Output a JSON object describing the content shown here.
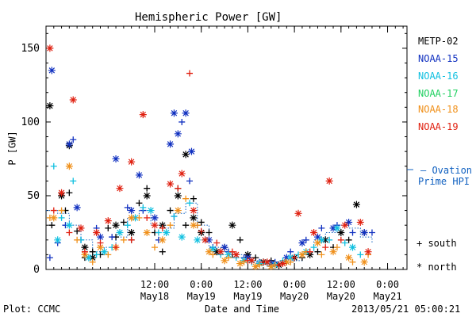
{
  "chart_data": {
    "type": "scatter",
    "title": "Hemispheric Power [GW]",
    "ylabel": "P [GW]",
    "xlabel": "Date and Time",
    "ylim": [
      0,
      165
    ],
    "xlim": [
      "2013-05-17 08:00",
      "2013-05-21 05:00"
    ],
    "yticks": [
      "0",
      "50",
      "100",
      "150"
    ],
    "xticks": [
      {
        "time": "12:00",
        "date": "May18"
      },
      {
        "time": "0:00",
        "date": "May19"
      },
      {
        "time": "12:00",
        "date": "May19"
      },
      {
        "time": "0:00",
        "date": "May20"
      },
      {
        "time": "12:00",
        "date": "May20"
      },
      {
        "time": "0:00",
        "date": "May21"
      }
    ],
    "legend_placement": "right",
    "series": [
      {
        "name": "METP-02",
        "color": "#000000",
        "south": [
          [
            1.5,
            30
          ],
          [
            5,
            40
          ],
          [
            6,
            52
          ],
          [
            8,
            26
          ],
          [
            10,
            8
          ],
          [
            12,
            12
          ],
          [
            14,
            10
          ],
          [
            16,
            28
          ],
          [
            18,
            22
          ],
          [
            20,
            32
          ],
          [
            22,
            20
          ],
          [
            24,
            45
          ],
          [
            26,
            55
          ],
          [
            28,
            25
          ],
          [
            30,
            12
          ],
          [
            32,
            40
          ],
          [
            34,
            55
          ],
          [
            36,
            30
          ],
          [
            38,
            48
          ],
          [
            40,
            32
          ],
          [
            42,
            25
          ],
          [
            46,
            15
          ],
          [
            48,
            10
          ],
          [
            50,
            20
          ],
          [
            54,
            8
          ],
          [
            58,
            6
          ],
          [
            62,
            5
          ],
          [
            66,
            8
          ],
          [
            70,
            12
          ],
          [
            74,
            15
          ],
          [
            78,
            20
          ],
          [
            82,
            25
          ]
        ],
        "north": [
          [
            1,
            111
          ],
          [
            4,
            50
          ],
          [
            6,
            84
          ],
          [
            10,
            15
          ],
          [
            12,
            8
          ],
          [
            18,
            30
          ],
          [
            22,
            25
          ],
          [
            26,
            50
          ],
          [
            30,
            30
          ],
          [
            34,
            50
          ],
          [
            36,
            78
          ],
          [
            38,
            35
          ],
          [
            40,
            25
          ],
          [
            44,
            12
          ],
          [
            48,
            30
          ],
          [
            52,
            10
          ],
          [
            56,
            5
          ],
          [
            60,
            3
          ],
          [
            64,
            8
          ],
          [
            68,
            10
          ],
          [
            72,
            20
          ],
          [
            76,
            25
          ],
          [
            80,
            44
          ]
        ]
      },
      {
        "name": "NOAA-15",
        "color": "#1030c0",
        "south": [
          [
            1,
            8
          ],
          [
            3,
            18
          ],
          [
            5,
            30
          ],
          [
            7,
            88
          ],
          [
            9,
            20
          ],
          [
            13,
            28
          ],
          [
            17,
            22
          ],
          [
            21,
            42
          ],
          [
            25,
            40
          ],
          [
            29,
            20
          ],
          [
            33,
            36
          ],
          [
            35,
            100
          ],
          [
            37,
            60
          ],
          [
            39,
            30
          ],
          [
            43,
            15
          ],
          [
            47,
            12
          ],
          [
            51,
            8
          ],
          [
            55,
            5
          ],
          [
            59,
            5
          ],
          [
            63,
            12
          ],
          [
            67,
            20
          ],
          [
            71,
            28
          ],
          [
            75,
            30
          ],
          [
            79,
            25
          ],
          [
            84,
            25
          ]
        ],
        "north": [
          [
            1.5,
            135
          ],
          [
            6,
            85
          ],
          [
            8,
            42
          ],
          [
            14,
            22
          ],
          [
            18,
            75
          ],
          [
            22,
            40
          ],
          [
            24,
            64
          ],
          [
            28,
            35
          ],
          [
            32,
            85
          ],
          [
            33,
            106
          ],
          [
            34,
            92
          ],
          [
            36,
            106
          ],
          [
            37.5,
            80
          ],
          [
            42,
            20
          ],
          [
            46,
            15
          ],
          [
            52,
            8
          ],
          [
            58,
            4
          ],
          [
            62,
            8
          ],
          [
            66,
            18
          ],
          [
            70,
            22
          ],
          [
            74,
            28
          ],
          [
            78,
            32
          ],
          [
            82,
            25
          ]
        ]
      },
      {
        "name": "NOAA-16",
        "color": "#10c0e0",
        "south": [
          [
            2,
            70
          ],
          [
            4,
            35
          ],
          [
            7,
            60
          ],
          [
            9,
            20
          ],
          [
            13,
            10
          ],
          [
            17,
            15
          ],
          [
            21,
            30
          ],
          [
            25,
            42
          ],
          [
            29,
            25
          ],
          [
            33,
            36
          ],
          [
            37,
            45
          ],
          [
            41,
            20
          ],
          [
            45,
            10
          ],
          [
            49,
            8
          ],
          [
            53,
            5
          ],
          [
            57,
            4
          ],
          [
            61,
            6
          ],
          [
            65,
            10
          ],
          [
            69,
            15
          ],
          [
            73,
            20
          ],
          [
            77,
            18
          ],
          [
            81,
            10
          ]
        ],
        "north": [
          [
            3,
            20
          ],
          [
            6,
            30
          ],
          [
            11,
            8
          ],
          [
            15,
            12
          ],
          [
            19,
            25
          ],
          [
            23,
            35
          ],
          [
            27,
            40
          ],
          [
            31,
            25
          ],
          [
            35,
            22
          ],
          [
            39,
            20
          ],
          [
            43,
            14
          ],
          [
            47,
            10
          ],
          [
            51,
            6
          ],
          [
            55,
            4
          ],
          [
            59,
            3
          ],
          [
            63,
            8
          ],
          [
            67,
            12
          ],
          [
            71,
            20
          ],
          [
            75,
            28
          ],
          [
            79,
            15
          ]
        ]
      },
      {
        "name": "NOAA-17",
        "color": "#20d060",
        "south": [],
        "north": []
      },
      {
        "name": "NOAA-18",
        "color": "#f0901a",
        "south": [
          [
            1,
            35
          ],
          [
            4,
            40
          ],
          [
            8,
            20
          ],
          [
            12,
            5
          ],
          [
            16,
            10
          ],
          [
            20,
            20
          ],
          [
            24,
            35
          ],
          [
            28,
            15
          ],
          [
            32,
            30
          ],
          [
            36,
            48
          ],
          [
            39,
            30
          ],
          [
            43,
            10
          ],
          [
            47,
            8
          ],
          [
            51,
            5
          ],
          [
            55,
            3
          ],
          [
            59,
            3
          ],
          [
            63,
            5
          ],
          [
            67,
            12
          ],
          [
            71,
            10
          ],
          [
            75,
            15
          ],
          [
            79,
            5
          ],
          [
            83,
            10
          ]
        ],
        "north": [
          [
            2,
            35
          ],
          [
            6,
            70
          ],
          [
            10,
            10
          ],
          [
            14,
            15
          ],
          [
            18,
            15
          ],
          [
            22,
            35
          ],
          [
            26,
            25
          ],
          [
            30,
            20
          ],
          [
            34,
            40
          ],
          [
            38,
            30
          ],
          [
            42,
            12
          ],
          [
            46,
            6
          ],
          [
            50,
            4
          ],
          [
            54,
            2
          ],
          [
            58,
            2
          ],
          [
            62,
            5
          ],
          [
            66,
            10
          ],
          [
            70,
            18
          ],
          [
            74,
            12
          ],
          [
            78,
            8
          ],
          [
            82,
            5
          ]
        ]
      },
      {
        "name": "NOAA-19",
        "color": "#e02010",
        "south": [
          [
            2,
            40
          ],
          [
            6,
            25
          ],
          [
            10,
            12
          ],
          [
            14,
            18
          ],
          [
            18,
            15
          ],
          [
            22,
            20
          ],
          [
            26,
            35
          ],
          [
            30,
            28
          ],
          [
            34,
            55
          ],
          [
            37,
            133
          ],
          [
            40,
            26
          ],
          [
            44,
            18
          ],
          [
            48,
            12
          ],
          [
            52,
            6
          ],
          [
            56,
            5
          ],
          [
            60,
            3
          ],
          [
            64,
            8
          ],
          [
            68,
            12
          ],
          [
            72,
            15
          ],
          [
            76,
            20
          ]
        ],
        "north": [
          [
            1,
            150
          ],
          [
            4,
            52
          ],
          [
            7,
            115
          ],
          [
            9,
            28
          ],
          [
            13,
            25
          ],
          [
            16,
            33
          ],
          [
            19,
            55
          ],
          [
            22,
            73
          ],
          [
            25,
            105
          ],
          [
            28,
            30
          ],
          [
            32,
            58
          ],
          [
            35,
            65
          ],
          [
            38,
            40
          ],
          [
            41,
            20
          ],
          [
            45,
            12
          ],
          [
            49,
            10
          ],
          [
            53,
            6
          ],
          [
            57,
            5
          ],
          [
            61,
            4
          ],
          [
            65,
            38
          ],
          [
            69,
            25
          ],
          [
            73,
            60
          ],
          [
            77,
            30
          ],
          [
            81,
            32
          ],
          [
            83,
            12
          ]
        ]
      }
    ],
    "ovation": {
      "name": "Ovation Prime HPI",
      "color": "#1060c0",
      "values": [
        [
          0,
          40
        ],
        [
          3,
          38
        ],
        [
          6,
          30
        ],
        [
          9,
          20
        ],
        [
          12,
          12
        ],
        [
          15,
          15
        ],
        [
          18,
          22
        ],
        [
          21,
          35
        ],
        [
          24,
          40
        ],
        [
          27,
          30
        ],
        [
          30,
          28
        ],
        [
          33,
          38
        ],
        [
          36,
          45
        ],
        [
          39,
          30
        ],
        [
          42,
          15
        ],
        [
          45,
          12
        ],
        [
          48,
          10
        ],
        [
          51,
          8
        ],
        [
          54,
          6
        ],
        [
          57,
          5
        ],
        [
          60,
          4
        ],
        [
          63,
          6
        ],
        [
          66,
          12
        ],
        [
          69,
          20
        ],
        [
          72,
          25
        ],
        [
          75,
          30
        ],
        [
          78,
          28
        ],
        [
          81,
          22
        ],
        [
          84,
          18
        ]
      ]
    }
  },
  "labels": {
    "title": "Hemispheric Power [GW]",
    "ylabel": "P [GW]",
    "xlabel": "Date and Time",
    "plot_credit": "Plot: CCMC",
    "timestamp": "2013/05/21 05:00:21",
    "legend_series": [
      "METP-02",
      "NOAA-15",
      "NOAA-16",
      "NOAA-17",
      "NOAA-18",
      "NOAA-19"
    ],
    "ovation_line1": "– Ovation",
    "ovation_line2": "Prime HPI",
    "south_label": "+ south",
    "north_label": "* north"
  }
}
